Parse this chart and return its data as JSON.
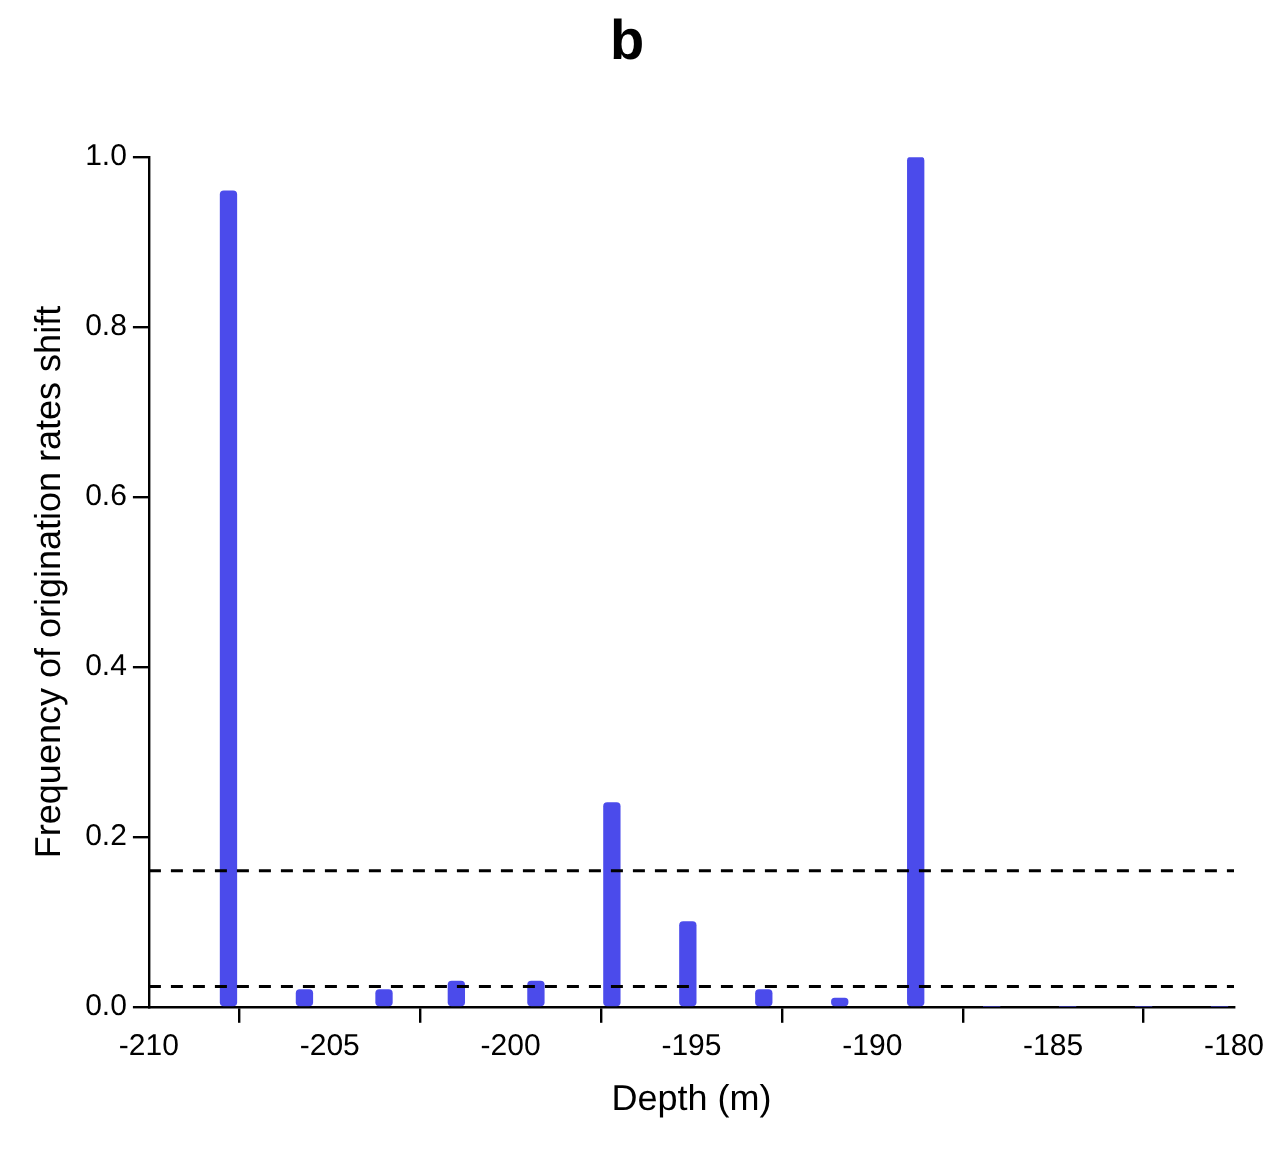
{
  "chart_data": {
    "type": "bar",
    "title": "b",
    "xlabel": "Depth (m)",
    "ylabel": "Frequency of origination rates shift",
    "x": [
      -207.8,
      -205.7,
      -203.5,
      -201.5,
      -199.3,
      -197.2,
      -195.1,
      -193.0,
      -190.9,
      -188.8,
      -186.7,
      -184.6,
      -182.5,
      -180.4
    ],
    "values": [
      0.96,
      0.02,
      0.02,
      0.03,
      0.03,
      0.24,
      0.1,
      0.02,
      0.01,
      1.0,
      0,
      0,
      0,
      0
    ],
    "color": "#4b4beb",
    "xlim": [
      -210,
      -180
    ],
    "xticks": [
      -210,
      -205,
      -200,
      -195,
      -190,
      -185,
      -180
    ],
    "ylim": [
      0,
      1
    ],
    "yticks": [
      {
        "value": 0,
        "label": "0.0"
      },
      {
        "value": 0.2,
        "label": "0.2"
      },
      {
        "value": 0.4,
        "label": "0.4"
      },
      {
        "value": 0.6,
        "label": "0.6"
      },
      {
        "value": 0.8,
        "label": "0.8"
      },
      {
        "value": 1,
        "label": "1.0"
      }
    ],
    "ref_lines": [
      {
        "axis": "y",
        "value": 0.16,
        "color": "#000000",
        "line_style": "dashed"
      },
      {
        "axis": "y",
        "value": 0.024,
        "color": "#000000",
        "line_style": "dashed"
      }
    ],
    "grid": false,
    "legend": false
  }
}
